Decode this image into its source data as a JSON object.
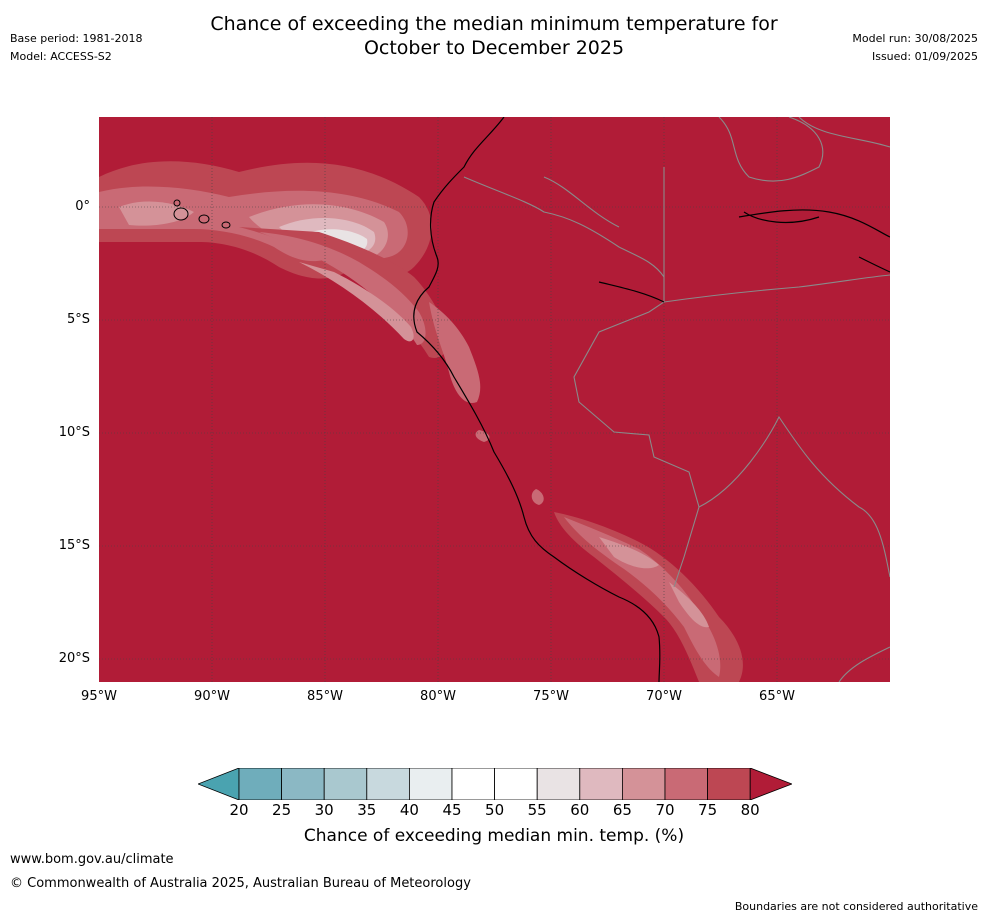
{
  "header": {
    "title_line1": "Chance of exceeding the median minimum temperature for",
    "title_line2": "October to December 2025",
    "base_period": "Base period: 1981-2018",
    "model": "Model: ACCESS-S2",
    "model_run": "Model run: 30/08/2025",
    "issued": "Issued: 01/09/2025"
  },
  "map": {
    "region": "Western South America and eastern Pacific",
    "lat_labels": [
      "0°",
      "5°S",
      "10°S",
      "15°S",
      "20°S"
    ],
    "lon_labels": [
      "95°W",
      "90°W",
      "85°W",
      "80°W",
      "75°W",
      "70°W",
      "65°W"
    ],
    "dominant_category": ">80",
    "colors": {
      "ocean_high": "#b11c37",
      "gridline": "#444444",
      "coastline": "#000000",
      "border": "#8a8a8a"
    }
  },
  "colorbar": {
    "ticks": [
      "20",
      "25",
      "30",
      "35",
      "40",
      "45",
      "50",
      "55",
      "60",
      "65",
      "70",
      "75",
      "80"
    ],
    "colors": [
      "#4aa3b0",
      "#6fadbb",
      "#8bb8c4",
      "#a9c8cf",
      "#c8d9de",
      "#e9eef0",
      "#ffffff",
      "#ffffff",
      "#e9e3e4",
      "#dfb9bf",
      "#d49298",
      "#c96a75",
      "#bd4753",
      "#b11c37"
    ],
    "label": "Chance of exceeding median min. temp. (%)"
  },
  "footer": {
    "url": "www.bom.gov.au/climate",
    "copyright": "© Commonwealth of Australia 2025, Australian Bureau of Meteorology",
    "disclaimer": "Boundaries are not considered authoritative"
  }
}
